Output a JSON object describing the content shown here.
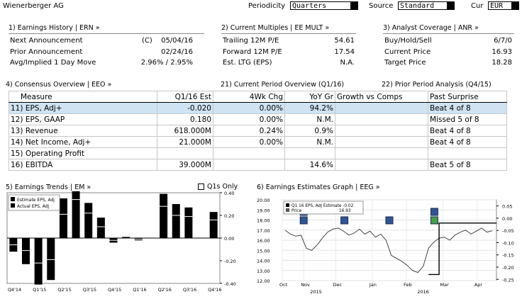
{
  "header": {
    "company": "Wienerberger AG",
    "periodicity_label": "Periodicity",
    "periodicity_value": "Quarters",
    "source_label": "Source",
    "source_value": "Standard",
    "cur_label": "Cur",
    "cur_value": "EUR"
  },
  "earnings_history": {
    "title": "1) Earnings History | ERN »",
    "rows": [
      {
        "label": "Next Announcement",
        "flag": "(C)",
        "value": "05/04/16"
      },
      {
        "label": "Prior Announcement",
        "flag": "",
        "value": "02/24/16"
      },
      {
        "label": "Avg/Implied 1 Day Move",
        "flag": "",
        "value": "2.96% / 2.95%"
      }
    ]
  },
  "current_multiples": {
    "title": "2) Current Multiples | EE MULT »",
    "rows": [
      {
        "label": "Trailing 12M P/E",
        "value": "54.61"
      },
      {
        "label": "Forward 12M P/E",
        "value": "17.54"
      },
      {
        "label": "Est. LTG (EPS)",
        "value": "N.A."
      }
    ]
  },
  "analyst_coverage": {
    "title": "3) Analyst Coverage | ANR »",
    "rows": [
      {
        "label": "Buy/Hold/Sell",
        "value": "6/7/0"
      },
      {
        "label": "Current Price",
        "value": "16.93"
      },
      {
        "label": "Target Price",
        "value": "18.28"
      }
    ]
  },
  "consensus": {
    "title": "4) Consensus Overview | EEO »",
    "current_period": "21) Current Period Overview (Q1/16)",
    "prior_period": "22) Prior Period Analysis (Q4/15)",
    "headers": [
      "Measure",
      "Q1/16 Est",
      "4Wk Chg",
      "YoY Gr",
      "Growth vs Comps",
      "Past Surprise"
    ],
    "rows": [
      {
        "num": "11)",
        "measure": "EPS, Adj+",
        "est": "-0.020",
        "chg": "0.00%",
        "yoy": "94.2%",
        "comps": "",
        "surprise": "Beat 4 of 8"
      },
      {
        "num": "12)",
        "measure": "EPS, GAAP",
        "est": "0.180",
        "chg": "0.00%",
        "yoy": "N.M.",
        "comps": "",
        "surprise": "Missed 5 of 8"
      },
      {
        "num": "13)",
        "measure": "Revenue",
        "est": "618.000M",
        "chg": "0.24%",
        "yoy": "0.9%",
        "comps": "",
        "surprise": "Beat 4 of 8"
      },
      {
        "num": "14)",
        "measure": "Net Income, Adj+",
        "est": "21.000M",
        "chg": "0.00%",
        "yoy": "N.M.",
        "comps": "",
        "surprise": "Beat 4 of 8"
      },
      {
        "num": "15)",
        "measure": "Operating Profit",
        "est": "",
        "chg": "",
        "yoy": "",
        "comps": "",
        "surprise": ""
      },
      {
        "num": "16)",
        "measure": "EBITDA",
        "est": "39.000M",
        "chg": "",
        "yoy": "14.6%",
        "comps": "",
        "surprise": "Beat 5 of 8"
      }
    ]
  },
  "earnings_trends": {
    "title": "5) Earnings Trends | EM »",
    "toggle_label": "Q1s Only",
    "legend": [
      "Estimate EPS, Adj",
      "Actual EPS, Adj"
    ],
    "y_ticks": [
      "0.40",
      "0.20",
      "0.00",
      "-0.20",
      "-0.40"
    ],
    "x_ticks": [
      "Q4'14",
      "Q1'15",
      "Q2'15",
      "Q3'15",
      "Q4'15",
      "Q1'16",
      "Q2'16",
      "Q3'16",
      "Q4'16"
    ]
  },
  "estimates_graph": {
    "title": "6) Earnings Estimates Graph | EEG »",
    "legend": [
      {
        "label": "Q1 16 EPS, Adj Estimate",
        "value": "-0.02"
      },
      {
        "label": "Price",
        "value": "16.93"
      }
    ],
    "y_left_ticks": [
      "20.00",
      "19.00",
      "18.00",
      "17.00",
      "16.00",
      "15.00",
      "14.00",
      "13.00",
      "12.00"
    ],
    "y_right_ticks": [
      "0.05",
      "0.00",
      "-0.05",
      "-0.10",
      "-0.15",
      "-0.20",
      "-0.25"
    ],
    "x_ticks": [
      "Oct",
      "Nov",
      "Dec",
      "Jan",
      "Feb",
      "Mar",
      "Apr"
    ],
    "year_labels": [
      "2015",
      "2016"
    ]
  },
  "chart_data": [
    {
      "type": "bar",
      "categories": [
        "Q4'14",
        "",
        "Q1'15",
        "",
        "Q2'15",
        "",
        "Q3'15",
        "",
        "Q4'15",
        "",
        "Q1'16",
        "",
        "Q2'16",
        "",
        "Q3'16",
        "",
        "Q4'16"
      ],
      "series": [
        {
          "name": "Estimate EPS, Adj",
          "values": [
            -0.06,
            -0.11,
            -0.22,
            -0.19,
            0.21,
            0.34,
            0.22,
            0.1,
            -0.02,
            0.02,
            -0.01,
            null,
            0.28,
            0.2,
            0.19,
            null,
            0.16
          ]
        },
        {
          "name": "Actual EPS, Adj",
          "values": [
            -0.12,
            -0.23,
            -0.41,
            -0.37,
            0.35,
            0.44,
            0.31,
            0.18,
            -0.04,
            0.01,
            -0.02,
            null,
            0.39,
            0.3,
            0.27,
            null,
            0.23
          ]
        }
      ],
      "ylim": [
        -0.4,
        0.4
      ]
    },
    {
      "type": "line",
      "series": [
        {
          "name": "Price",
          "values": [
            17.0,
            16.6,
            16.4,
            16.5,
            15.2,
            15.0,
            15.5,
            16.2,
            16.8,
            17.1,
            17.2,
            16.9,
            16.5,
            16.7,
            17.1,
            16.6,
            16.9,
            16.3,
            16.6,
            16.0,
            14.5,
            14.2,
            13.9,
            13.5,
            13.0,
            12.8,
            13.4,
            15.2,
            15.8,
            16.2,
            16.3,
            16.0,
            16.5,
            16.8,
            17.0,
            16.6,
            16.9,
            17.2,
            16.8,
            16.93
          ]
        },
        {
          "name": "Q1 16 EPS, Adj Estimate",
          "values": [
            null,
            null,
            null,
            null,
            null,
            null,
            null,
            null,
            null,
            null,
            null,
            null,
            null,
            null,
            null,
            null,
            null,
            null,
            null,
            null,
            null,
            null,
            null,
            null,
            null,
            null,
            null,
            -0.23,
            -0.23,
            -0.02,
            -0.02,
            -0.02,
            -0.02,
            -0.02,
            -0.02,
            -0.02,
            -0.02,
            -0.02,
            -0.02,
            -0.02
          ]
        }
      ],
      "ylim": [
        12.0,
        20.0
      ]
    }
  ]
}
